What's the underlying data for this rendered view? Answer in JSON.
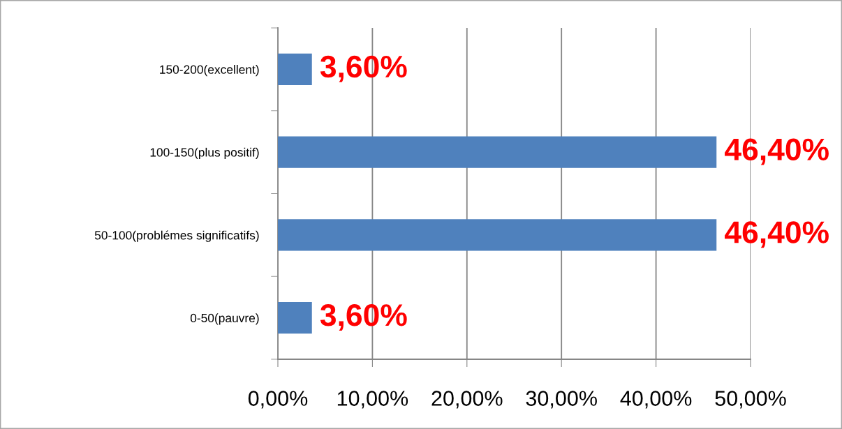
{
  "chart_data": {
    "type": "bar",
    "orientation": "horizontal",
    "categories": [
      "150-200(excellent)",
      "100-150(plus positif)",
      "50-100(problémes significatifs)",
      "0-50(pauvre)"
    ],
    "values": [
      3.6,
      46.4,
      46.4,
      3.6
    ],
    "value_labels": [
      "3,60%",
      "46,40%",
      "46,40%",
      "3,60%"
    ],
    "color": "#4f81bd",
    "xlim": [
      0,
      50
    ],
    "xticks": [
      {
        "value": 0,
        "label": "0,00%"
      },
      {
        "value": 10,
        "label": "10,00%"
      },
      {
        "value": 20,
        "label": "20,00%"
      },
      {
        "value": 30,
        "label": "30,00%"
      },
      {
        "value": 40,
        "label": "40,00%"
      },
      {
        "value": 50,
        "label": "50,00%"
      }
    ],
    "grid": "x"
  }
}
